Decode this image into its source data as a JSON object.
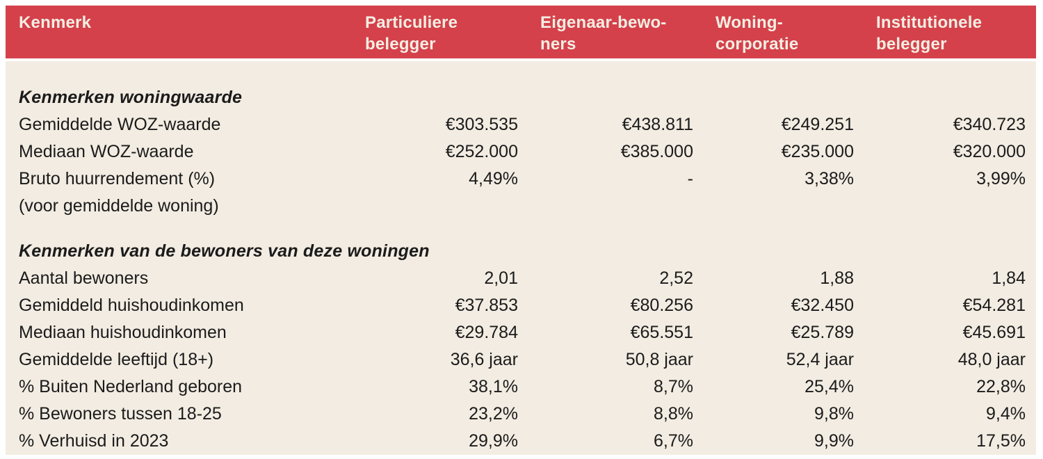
{
  "colors": {
    "header_bg": "#d4414b",
    "header_text": "#f4eee3",
    "body_bg": "#f2ece2",
    "body_text": "#1b1b1b",
    "page_bg": "#ffffff"
  },
  "chart_data": {
    "type": "table",
    "columns": [
      "Kenmerk",
      "Particuliere belegger",
      "Eigenaar-bewoners",
      "Woningcorporatie",
      "Institutionele belegger"
    ],
    "header_display": {
      "c0": "Kenmerk",
      "c1": "Particuliere\nbelegger",
      "c2": "Eigenaar-bewo-\nners",
      "c3": "Woning-\ncorporatie",
      "c4": "Institutionele\nbelegger"
    },
    "rows": [
      {
        "type": "section",
        "label": "Kenmerken woningwaarde"
      },
      {
        "type": "data",
        "label": "Gemiddelde WOZ-waarde",
        "values": [
          "€303.535",
          "€438.811",
          "€249.251",
          "€340.723"
        ]
      },
      {
        "type": "data",
        "label": "Mediaan WOZ-waarde",
        "values": [
          "€252.000",
          "€385.000",
          "€235.000",
          "€320.000"
        ]
      },
      {
        "type": "data",
        "label": "Bruto huurrendement (%)",
        "values": [
          "4,49%",
          "-",
          "3,38%",
          "3,99%"
        ]
      },
      {
        "type": "data",
        "label": "(voor gemiddelde woning)",
        "values": [
          "",
          "",
          "",
          ""
        ]
      },
      {
        "type": "section",
        "label": "Kenmerken van de bewoners van deze woningen"
      },
      {
        "type": "data",
        "label": "Aantal bewoners",
        "values": [
          "2,01",
          "2,52",
          "1,88",
          "1,84"
        ]
      },
      {
        "type": "data",
        "label": "Gemiddeld huishoudinkomen",
        "values": [
          "€37.853",
          "€80.256",
          "€32.450",
          "€54.281"
        ]
      },
      {
        "type": "data",
        "label": "Mediaan huishoudinkomen",
        "values": [
          "€29.784",
          "€65.551",
          "€25.789",
          "€45.691"
        ]
      },
      {
        "type": "data",
        "label": "Gemiddelde leeftijd (18+)",
        "values": [
          "36,6 jaar",
          "50,8 jaar",
          "52,4 jaar",
          "48,0 jaar"
        ]
      },
      {
        "type": "data",
        "label": "% Buiten Nederland geboren",
        "values": [
          "38,1%",
          "8,7%",
          "25,4%",
          "22,8%"
        ]
      },
      {
        "type": "data",
        "label": "% Bewoners tussen 18-25",
        "values": [
          "23,2%",
          "8,8%",
          "9,8%",
          "9,4%"
        ]
      },
      {
        "type": "data",
        "label": "% Verhuisd in 2023",
        "values": [
          "29,9%",
          "6,7%",
          "9,9%",
          "17,5%"
        ]
      }
    ]
  }
}
